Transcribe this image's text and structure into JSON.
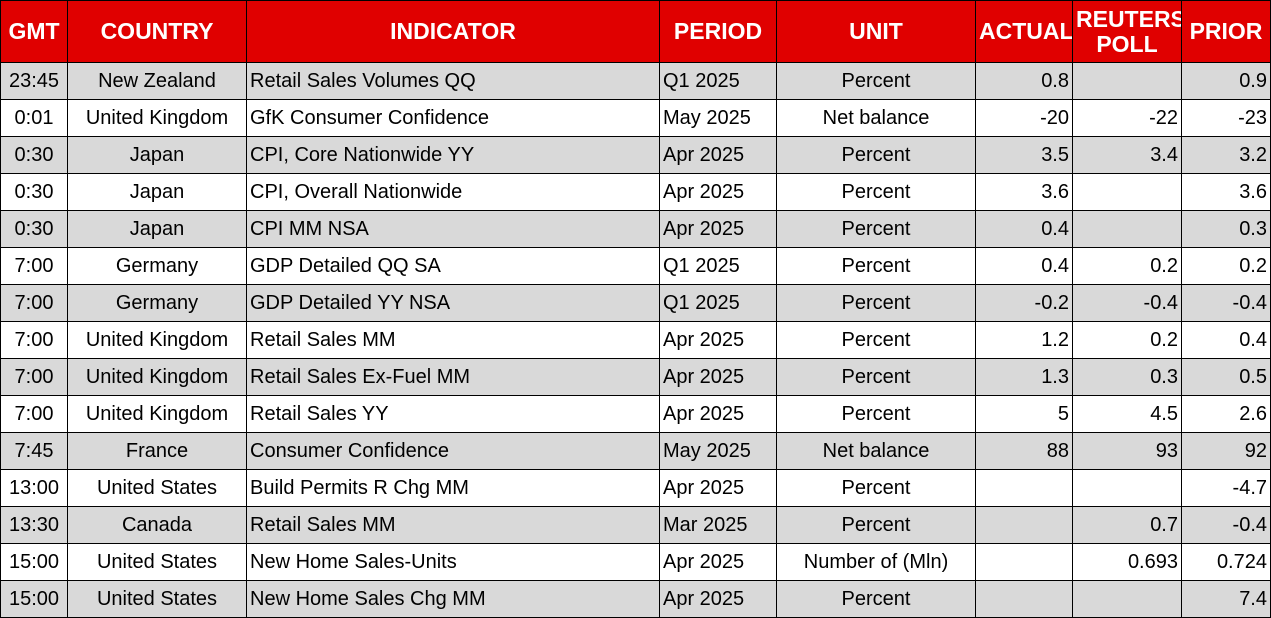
{
  "colors": {
    "header_bg": "#e00000",
    "header_text": "#ffffff",
    "row_alt": "#d9d9d9",
    "row_plain": "#ffffff"
  },
  "headers": {
    "gmt": "GMT",
    "country": "COUNTRY",
    "indicator": "INDICATOR",
    "period": "PERIOD",
    "unit": "UNIT",
    "actual": "ACTUAL",
    "poll_line1": "REUTERS",
    "poll_line2": "POLL",
    "prior": "PRIOR"
  },
  "rows": [
    {
      "gmt": "23:45",
      "country": "New Zealand",
      "indicator": "Retail Sales Volumes QQ",
      "period": "Q1 2025",
      "unit": "Percent",
      "actual": "0.8",
      "poll": "",
      "prior": "0.9"
    },
    {
      "gmt": "0:01",
      "country": "United Kingdom",
      "indicator": "GfK Consumer Confidence",
      "period": "May 2025",
      "unit": "Net balance",
      "actual": "-20",
      "poll": "-22",
      "prior": "-23"
    },
    {
      "gmt": "0:30",
      "country": "Japan",
      "indicator": "CPI, Core Nationwide YY",
      "period": "Apr 2025",
      "unit": "Percent",
      "actual": "3.5",
      "poll": "3.4",
      "prior": "3.2"
    },
    {
      "gmt": "0:30",
      "country": "Japan",
      "indicator": "CPI, Overall Nationwide",
      "period": "Apr 2025",
      "unit": "Percent",
      "actual": "3.6",
      "poll": "",
      "prior": "3.6"
    },
    {
      "gmt": "0:30",
      "country": "Japan",
      "indicator": "CPI MM NSA",
      "period": "Apr 2025",
      "unit": "Percent",
      "actual": "0.4",
      "poll": "",
      "prior": "0.3"
    },
    {
      "gmt": "7:00",
      "country": "Germany",
      "indicator": "GDP Detailed QQ SA",
      "period": "Q1 2025",
      "unit": "Percent",
      "actual": "0.4",
      "poll": "0.2",
      "prior": "0.2"
    },
    {
      "gmt": "7:00",
      "country": "Germany",
      "indicator": "GDP Detailed YY NSA",
      "period": "Q1 2025",
      "unit": "Percent",
      "actual": "-0.2",
      "poll": "-0.4",
      "prior": "-0.4"
    },
    {
      "gmt": "7:00",
      "country": "United Kingdom",
      "indicator": "Retail Sales MM",
      "period": "Apr 2025",
      "unit": "Percent",
      "actual": "1.2",
      "poll": "0.2",
      "prior": "0.4"
    },
    {
      "gmt": "7:00",
      "country": "United Kingdom",
      "indicator": "Retail Sales Ex-Fuel MM",
      "period": "Apr 2025",
      "unit": "Percent",
      "actual": "1.3",
      "poll": "0.3",
      "prior": "0.5"
    },
    {
      "gmt": "7:00",
      "country": "United Kingdom",
      "indicator": "Retail Sales YY",
      "period": "Apr 2025",
      "unit": "Percent",
      "actual": "5",
      "poll": "4.5",
      "prior": "2.6"
    },
    {
      "gmt": "7:45",
      "country": "France",
      "indicator": "Consumer Confidence",
      "period": "May 2025",
      "unit": "Net balance",
      "actual": "88",
      "poll": "93",
      "prior": "92"
    },
    {
      "gmt": "13:00",
      "country": "United States",
      "indicator": "Build Permits R Chg MM",
      "period": "Apr 2025",
      "unit": "Percent",
      "actual": "",
      "poll": "",
      "prior": "-4.7"
    },
    {
      "gmt": "13:30",
      "country": "Canada",
      "indicator": "Retail Sales MM",
      "period": "Mar 2025",
      "unit": "Percent",
      "actual": "",
      "poll": "0.7",
      "prior": "-0.4"
    },
    {
      "gmt": "15:00",
      "country": "United States",
      "indicator": "New Home Sales-Units",
      "period": "Apr 2025",
      "unit": "Number of (Mln)",
      "actual": "",
      "poll": "0.693",
      "prior": "0.724"
    },
    {
      "gmt": "15:00",
      "country": "United States",
      "indicator": "New Home Sales Chg MM",
      "period": "Apr 2025",
      "unit": "Percent",
      "actual": "",
      "poll": "",
      "prior": "7.4"
    }
  ]
}
